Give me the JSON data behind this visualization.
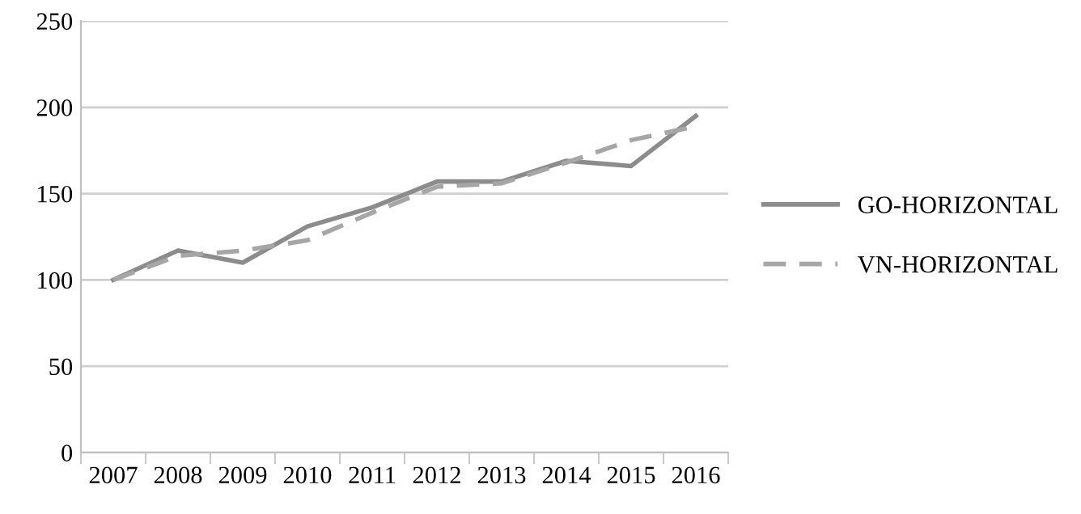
{
  "chart_data": {
    "type": "line",
    "categories": [
      "2007",
      "2008",
      "2009",
      "2010",
      "2011",
      "2012",
      "2013",
      "2014",
      "2015",
      "2016"
    ],
    "series": [
      {
        "name": "GO-HORIZONTAL",
        "color": "#8c8c8c",
        "line_style": "solid",
        "values": [
          100,
          117,
          110,
          131,
          142,
          157,
          157,
          169,
          166,
          195
        ]
      },
      {
        "name": "VN-HORIZONTAL",
        "color": "#a6a6a6",
        "line_style": "dashed",
        "values": [
          100,
          114,
          117,
          123,
          139,
          154,
          156,
          168,
          181,
          189
        ]
      }
    ],
    "ylim": [
      0,
      250
    ],
    "yticks": [
      0,
      50,
      100,
      150,
      200,
      250
    ],
    "grid": "y",
    "legend": "right"
  }
}
